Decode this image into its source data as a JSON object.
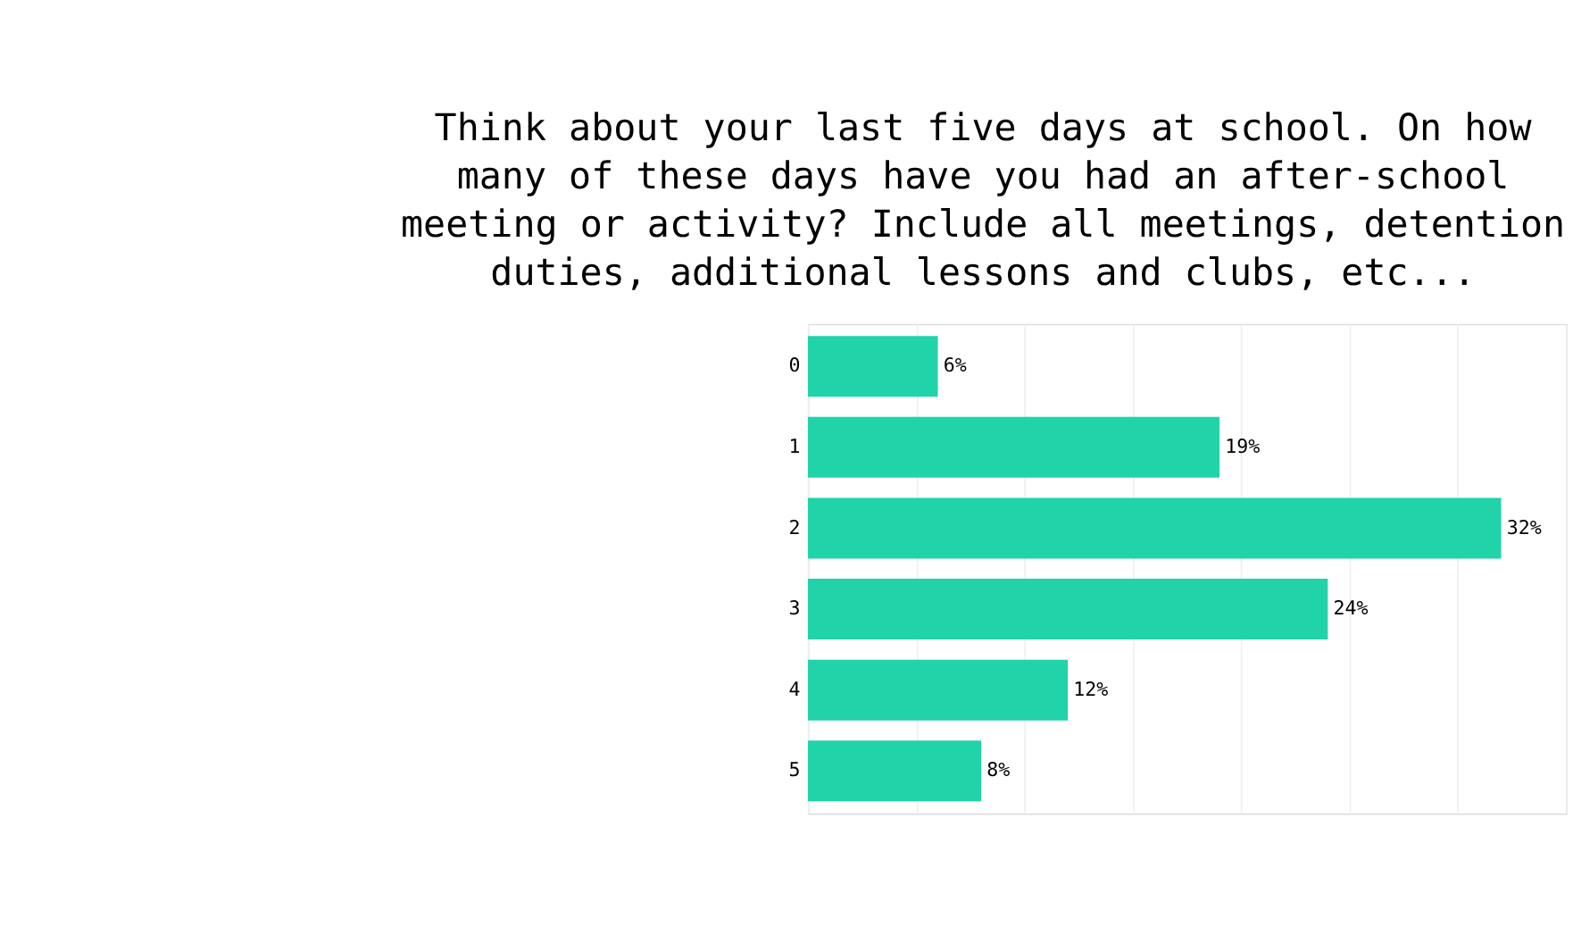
{
  "chart_data": {
    "type": "bar",
    "orientation": "horizontal",
    "title": "Think about your last five days at school. On how many of these days have you had an after-school meeting or activity? Include all meetings, detention duties, additional lessons and clubs, etc...",
    "categories": [
      "0",
      "1",
      "2",
      "3",
      "4",
      "5"
    ],
    "values": [
      6,
      19,
      32,
      24,
      12,
      8
    ],
    "value_labels": [
      "6%",
      "19%",
      "32%",
      "24%",
      "12%",
      "8%"
    ],
    "color": "#21d3a8",
    "xlim": [
      0,
      35
    ],
    "xticks": [
      {
        "value": 0,
        "label": null
      },
      {
        "value": 5,
        "label": null
      },
      {
        "value": 10,
        "label": null
      },
      {
        "value": 15,
        "label": null
      },
      {
        "value": 20,
        "label": null
      },
      {
        "value": 25,
        "label": null
      },
      {
        "value": 30,
        "label": null
      },
      {
        "value": 35,
        "label": null
      }
    ],
    "grid": "x",
    "tick_labels": "y"
  }
}
